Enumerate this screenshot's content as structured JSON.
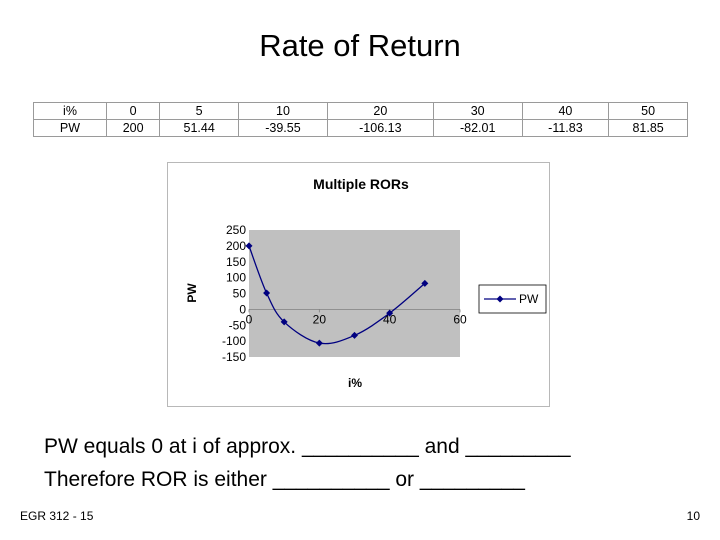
{
  "slide": {
    "title": "Rate of Return",
    "footer_left": "EGR 312 - 15",
    "footer_right": "10",
    "line1": "PW equals 0 at i of approx. __________ and _________",
    "line2": "Therefore ROR is either __________ or _________"
  },
  "table": {
    "rows": [
      {
        "label": "i%",
        "cells": [
          "0",
          "5",
          "10",
          "20",
          "30",
          "40",
          "50"
        ]
      },
      {
        "label": "PW",
        "cells": [
          "200",
          "51.44",
          "-39.55",
          "-106.13",
          "-82.01",
          "-11.83",
          "81.85"
        ]
      }
    ]
  },
  "chart_data": {
    "type": "line",
    "title": "Multiple RORs",
    "xlabel": "i%",
    "ylabel": "PW",
    "x": [
      0,
      5,
      10,
      20,
      30,
      40,
      50
    ],
    "series": [
      {
        "name": "PW",
        "values": [
          200,
          51.44,
          -39.55,
          -106.13,
          -82.01,
          -11.83,
          81.85
        ]
      }
    ],
    "xlim": [
      0,
      60
    ],
    "ylim": [
      -150,
      250
    ],
    "x_ticks": [
      "0",
      "20",
      "40",
      "60"
    ],
    "y_ticks": [
      "250",
      "200",
      "150",
      "100",
      "50",
      "0",
      "-50",
      "-100",
      "-150"
    ],
    "legend": "right",
    "plot_bg": "#c0c0c0",
    "line_color": "#000080",
    "grid": false
  }
}
